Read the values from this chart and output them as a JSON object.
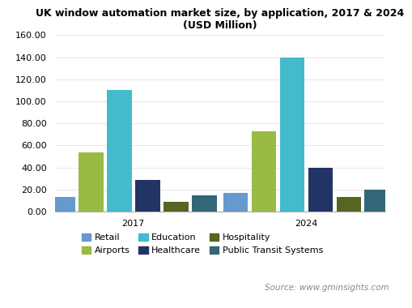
{
  "title": "UK window automation market size, by application, 2017 & 2024\n(USD Million)",
  "years": [
    "2017",
    "2024"
  ],
  "categories": [
    "Retail",
    "Airports",
    "Education",
    "Healthcare",
    "Hospitality",
    "Public Transit Systems"
  ],
  "values": {
    "2017": [
      13,
      54,
      110,
      29,
      9,
      15
    ],
    "2024": [
      17,
      73,
      140,
      40,
      13,
      20
    ]
  },
  "colors": [
    "#6699cc",
    "#99bb44",
    "#44bbcc",
    "#223366",
    "#556622",
    "#336677"
  ],
  "ylim": [
    0,
    160
  ],
  "yticks": [
    0.0,
    20.0,
    40.0,
    60.0,
    80.0,
    100.0,
    120.0,
    140.0,
    160.0
  ],
  "bar_width": 0.09,
  "group_centers": [
    0.3,
    0.85
  ],
  "xlim": [
    0.05,
    1.1
  ],
  "source_text": "Source: www.gminsights.com",
  "background_color": "#ffffff",
  "footer_bg": "#e8e8e8",
  "title_fontsize": 9,
  "tick_fontsize": 8,
  "legend_fontsize": 8
}
